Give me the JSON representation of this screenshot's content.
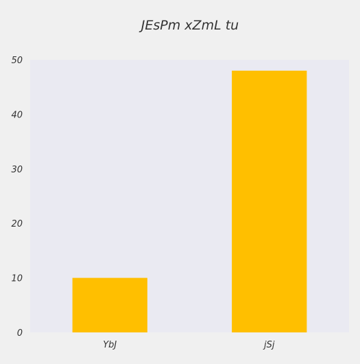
{
  "chart_data": {
    "type": "bar",
    "title": "JEsPm xZmL tu",
    "xlabel": "",
    "ylabel": "",
    "categories": [
      "YbJ",
      "jSj"
    ],
    "values": [
      10,
      48
    ],
    "ylim": [
      0,
      50
    ],
    "yticks": [
      0,
      10,
      20,
      30,
      40,
      50
    ],
    "grid": false,
    "legend": "none",
    "colors": {
      "bar": "#ffbf00",
      "plot_background": "#eaeaf2",
      "figure_background": "#f0f0f0",
      "text": "#333333"
    }
  }
}
